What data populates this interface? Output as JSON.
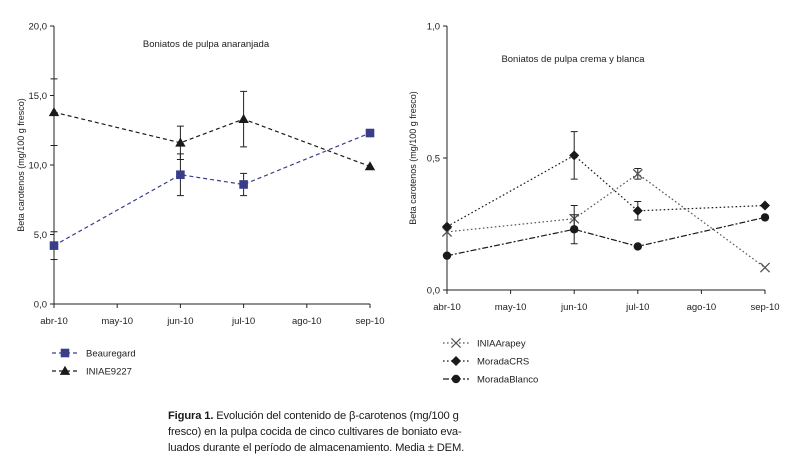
{
  "chart_data": [
    {
      "type": "line",
      "title": "Boniatos de pulpa anaranjada",
      "xlabel": "",
      "ylabel": "Beta carotenos (mg/100 g fresco)",
      "ylim": [
        0,
        20
      ],
      "yticks": [
        "0,0",
        "5,0",
        "10,0",
        "15,0",
        "20,0"
      ],
      "categories": [
        "abr-10",
        "may-10",
        "jun-10",
        "jul-10",
        "ago-10",
        "sep-10"
      ],
      "legend_position": "bottom-left",
      "series": [
        {
          "name": "Beauregard",
          "marker": "square",
          "color": "#3a3e8a",
          "line_style": "dashed",
          "x": [
            0,
            2,
            3,
            5
          ],
          "values": [
            4.2,
            9.3,
            8.6,
            12.3
          ],
          "errors": [
            1.0,
            1.5,
            0.8,
            0.0
          ]
        },
        {
          "name": "INIAE9227",
          "marker": "triangle",
          "color": "#1a1a1a",
          "line_style": "dashed",
          "x": [
            0,
            2,
            3,
            5
          ],
          "values": [
            13.8,
            11.6,
            13.3,
            9.9
          ],
          "errors": [
            2.4,
            1.2,
            2.0,
            0.0
          ]
        }
      ]
    },
    {
      "type": "line",
      "title": "Boniatos de pulpa crema y blanca",
      "xlabel": "",
      "ylabel": "Beta carotenos (mg/100 g fresco)",
      "ylim": [
        0,
        1
      ],
      "yticks": [
        "0,0",
        "0,5",
        "1,0"
      ],
      "categories": [
        "abr-10",
        "may-10",
        "jun-10",
        "jul-10",
        "ago-10",
        "sep-10"
      ],
      "legend_position": "bottom-left",
      "series": [
        {
          "name": "INIAArapey",
          "marker": "x",
          "color": "#555555",
          "line_style": "dotted",
          "x": [
            0,
            2,
            3,
            5
          ],
          "values": [
            0.22,
            0.27,
            0.44,
            0.085
          ],
          "errors": [
            0.0,
            0.05,
            0.02,
            0.0
          ]
        },
        {
          "name": "MoradaCRS",
          "marker": "diamond",
          "color": "#1a1a1a",
          "line_style": "dotted",
          "x": [
            0,
            2,
            3,
            5
          ],
          "values": [
            0.24,
            0.51,
            0.3,
            0.32
          ],
          "errors": [
            0.0,
            0.09,
            0.035,
            0.0
          ]
        },
        {
          "name": "MoradaBlanco",
          "marker": "circle",
          "color": "#1a1a1a",
          "line_style": "dashdot",
          "x": [
            0,
            2,
            3,
            5
          ],
          "values": [
            0.13,
            0.23,
            0.165,
            0.275
          ],
          "errors": [
            0.0,
            0.055,
            0.0,
            0.0
          ]
        }
      ]
    }
  ],
  "caption": {
    "label": "Figura 1.",
    "text": " Evolución del contenido de β-carotenos (mg/100 g fresco) en la pulpa cocida de cinco cultivares de boniato  eva-luados durante el período de almacenamiento. Media ± DEM."
  }
}
